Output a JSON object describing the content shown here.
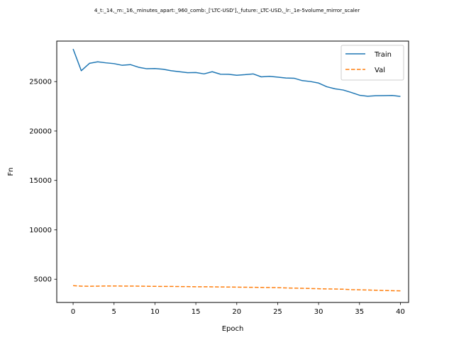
{
  "chart_data": {
    "type": "line",
    "title": "4_t:_14,_m:_16,_minutes_apart:_960_comb:_['LTC-USD'],_future:_LTC-USD,_lr:_1e-5volume_mirror_scaler",
    "xlabel": "Epoch",
    "ylabel": "Fn",
    "xlim": [
      -2,
      41
    ],
    "ylim": [
      2650,
      29100
    ],
    "xticks": [
      0,
      5,
      10,
      15,
      20,
      25,
      30,
      35,
      40
    ],
    "yticks": [
      5000,
      10000,
      15000,
      20000,
      25000
    ],
    "grid": false,
    "legend_position": "top-right",
    "x": [
      0,
      1,
      2,
      3,
      4,
      5,
      6,
      7,
      8,
      9,
      10,
      11,
      12,
      13,
      14,
      15,
      16,
      17,
      18,
      19,
      20,
      21,
      22,
      23,
      24,
      25,
      26,
      27,
      28,
      29,
      30,
      31,
      32,
      33,
      34,
      35,
      36,
      37,
      38,
      39,
      40
    ],
    "series": [
      {
        "name": "Train",
        "color": "#1f77b4",
        "style": "solid",
        "values": [
          28300,
          26100,
          26850,
          27000,
          26900,
          26820,
          26650,
          26720,
          26450,
          26300,
          26320,
          26250,
          26100,
          26000,
          25900,
          25920,
          25780,
          26000,
          25750,
          25740,
          25640,
          25700,
          25780,
          25480,
          25530,
          25450,
          25360,
          25340,
          25100,
          25010,
          24850,
          24480,
          24270,
          24150,
          23900,
          23620,
          23520,
          23570,
          23580,
          23600,
          23500
        ]
      },
      {
        "name": "Val",
        "color": "#ff7f0e",
        "style": "dashed",
        "values": [
          4350,
          4300,
          4290,
          4300,
          4320,
          4320,
          4310,
          4310,
          4300,
          4290,
          4280,
          4270,
          4270,
          4260,
          4250,
          4240,
          4240,
          4230,
          4220,
          4210,
          4200,
          4190,
          4180,
          4170,
          4160,
          4150,
          4120,
          4100,
          4080,
          4060,
          4040,
          4020,
          4010,
          3990,
          3950,
          3930,
          3910,
          3890,
          3860,
          3840,
          3820
        ]
      }
    ]
  }
}
